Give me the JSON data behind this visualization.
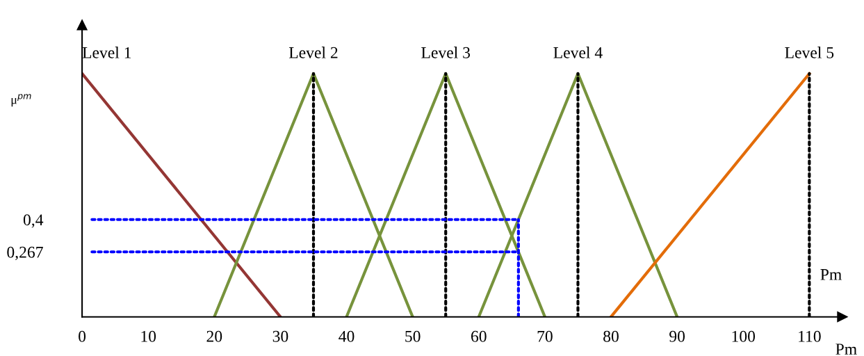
{
  "chart_data": {
    "type": "line",
    "xlabel": "Pm",
    "ylabel": "μ$^{pm}$",
    "annotations": [
      "Pm"
    ],
    "xlim": [
      0,
      115
    ],
    "ylim": [
      0,
      1.2
    ],
    "xticks": [
      0,
      10,
      20,
      30,
      40,
      50,
      60,
      70,
      80,
      90,
      100,
      110
    ],
    "yticks": [
      {
        "value": 0.267,
        "label": "0,267"
      },
      {
        "value": 0.4,
        "label": "0,4"
      }
    ],
    "grid": false,
    "legend": false,
    "marker": "none",
    "series": [
      {
        "name": "Level 1",
        "color": "#943634",
        "x": [
          0,
          30
        ],
        "values": [
          1,
          0
        ]
      },
      {
        "name": "Level 2",
        "color": "#77933c",
        "x": [
          20,
          35,
          50
        ],
        "values": [
          0,
          1,
          0
        ]
      },
      {
        "name": "Level 3",
        "color": "#77933c",
        "x": [
          40,
          55,
          70
        ],
        "values": [
          0,
          1,
          0
        ]
      },
      {
        "name": "Level 4",
        "color": "#77933c",
        "x": [
          60,
          75,
          90
        ],
        "values": [
          0,
          1,
          0
        ]
      },
      {
        "name": "Level 5",
        "color": "#e36c09",
        "x": [
          80,
          110
        ],
        "values": [
          0,
          1
        ]
      },
      {
        "color": "#000000",
        "line_style": "dotted",
        "x": [
          35,
          35
        ],
        "values": [
          0,
          1
        ]
      },
      {
        "color": "#000000",
        "line_style": "dotted",
        "x": [
          55,
          55
        ],
        "values": [
          0,
          1
        ]
      },
      {
        "color": "#000000",
        "line_style": "dotted",
        "x": [
          75,
          75
        ],
        "values": [
          0,
          1
        ]
      },
      {
        "color": "#000000",
        "line_style": "dotted",
        "x": [
          110,
          110
        ],
        "values": [
          0,
          1
        ]
      },
      {
        "color": "#0000ff",
        "line_style": "dotted",
        "x": [
          1.5,
          66
        ],
        "values": [
          0.4,
          0.4
        ]
      },
      {
        "color": "#0000ff",
        "line_style": "dotted",
        "x": [
          1.5,
          66
        ],
        "values": [
          0.267,
          0.267
        ]
      },
      {
        "color": "#0000ff",
        "line_style": "dotted",
        "x": [
          66,
          66
        ],
        "values": [
          0,
          0.4
        ]
      }
    ]
  }
}
